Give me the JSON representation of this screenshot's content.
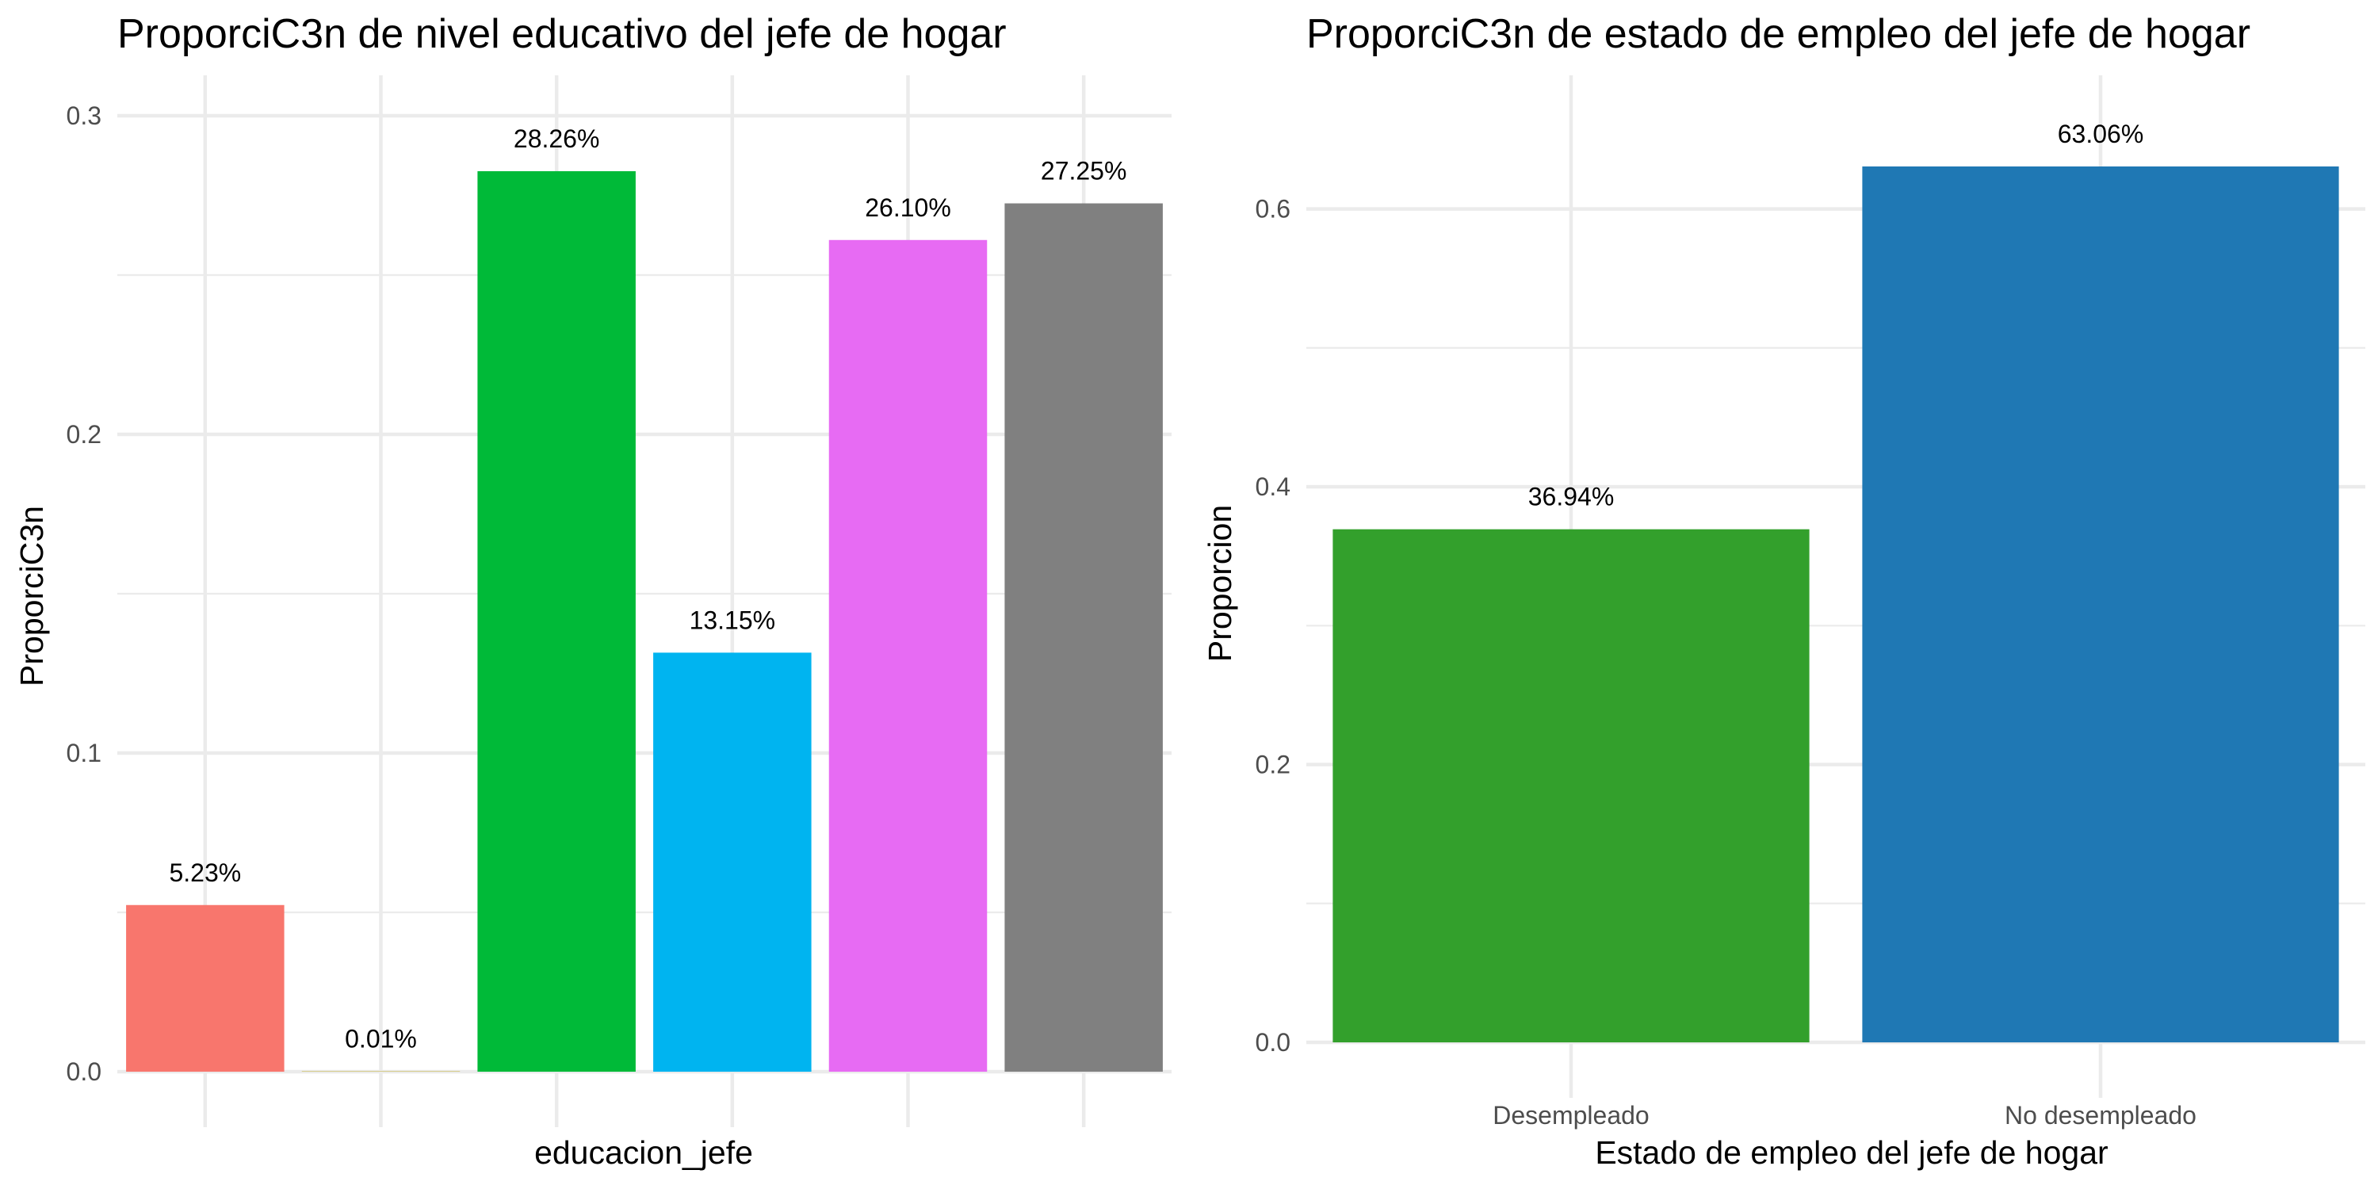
{
  "chart_data": [
    {
      "type": "bar",
      "title": "ProporciC3n de nivel educativo del jefe de hogar",
      "xlabel": "educacion_jefe",
      "ylabel": "ProporciC3n",
      "categories": [
        "",
        "",
        "",
        "",
        "",
        ""
      ],
      "values": [
        0.0523,
        0.0001,
        0.2826,
        0.1315,
        0.261,
        0.2725
      ],
      "labels": [
        "5.23%",
        "0.01%",
        "28.26%",
        "13.15%",
        "26.10%",
        "27.25%"
      ],
      "colors": [
        "#F8766D",
        "#B79F00",
        "#00BA38",
        "#00B4F0",
        "#E76BF3",
        "#808080"
      ],
      "ylim": [
        0,
        0.3
      ],
      "yticks": [
        0.0,
        0.1,
        0.2,
        0.3
      ],
      "ytick_labels": [
        "0.0",
        "0.1",
        "0.2",
        "0.3"
      ],
      "grid": true,
      "legend": "none"
    },
    {
      "type": "bar",
      "title": "ProporciC3n de estado de empleo del jefe de hogar",
      "xlabel": "Estado de empleo del jefe de hogar",
      "ylabel": "Proporcion",
      "categories": [
        "Desempleado",
        "No desempleado"
      ],
      "values": [
        0.3694,
        0.6306
      ],
      "labels": [
        "36.94%",
        "63.06%"
      ],
      "colors": [
        "#33A02C",
        "#1F78B4"
      ],
      "ylim": [
        0,
        0.6306
      ],
      "yticks": [
        0.0,
        0.2,
        0.4,
        0.6
      ],
      "ytick_labels": [
        "0.0",
        "0.2",
        "0.4",
        "0.6"
      ],
      "grid": true,
      "legend": "none"
    }
  ]
}
